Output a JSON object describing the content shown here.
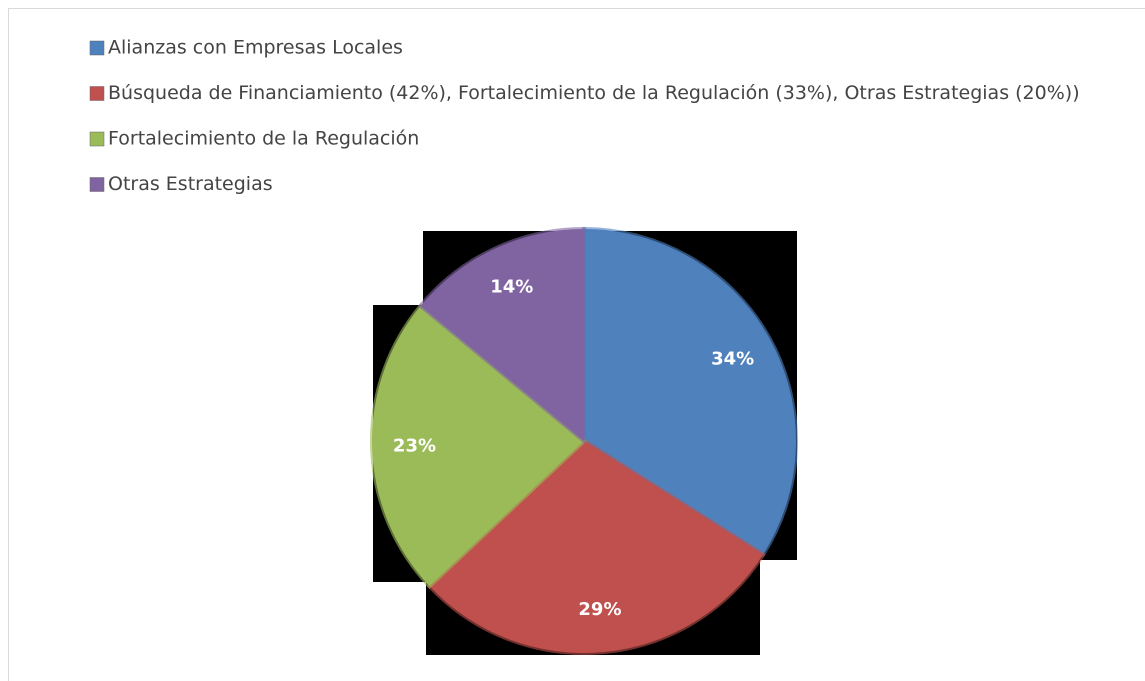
{
  "chart_data": {
    "type": "pie",
    "categories": [
      "Alianzas con Empresas Locales",
      "Búsqueda de Financiamiento (42%), Fortalecimiento de la Regulación (33%), Otras Estrategias (20%))",
      "Fortalecimiento de la Regulación",
      "Otras Estrategias"
    ],
    "values": [
      34,
      29,
      23,
      14
    ],
    "colors": [
      "#4f81bd",
      "#c0504d",
      "#9bbb59",
      "#8064a2"
    ],
    "legend": "top-left"
  }
}
